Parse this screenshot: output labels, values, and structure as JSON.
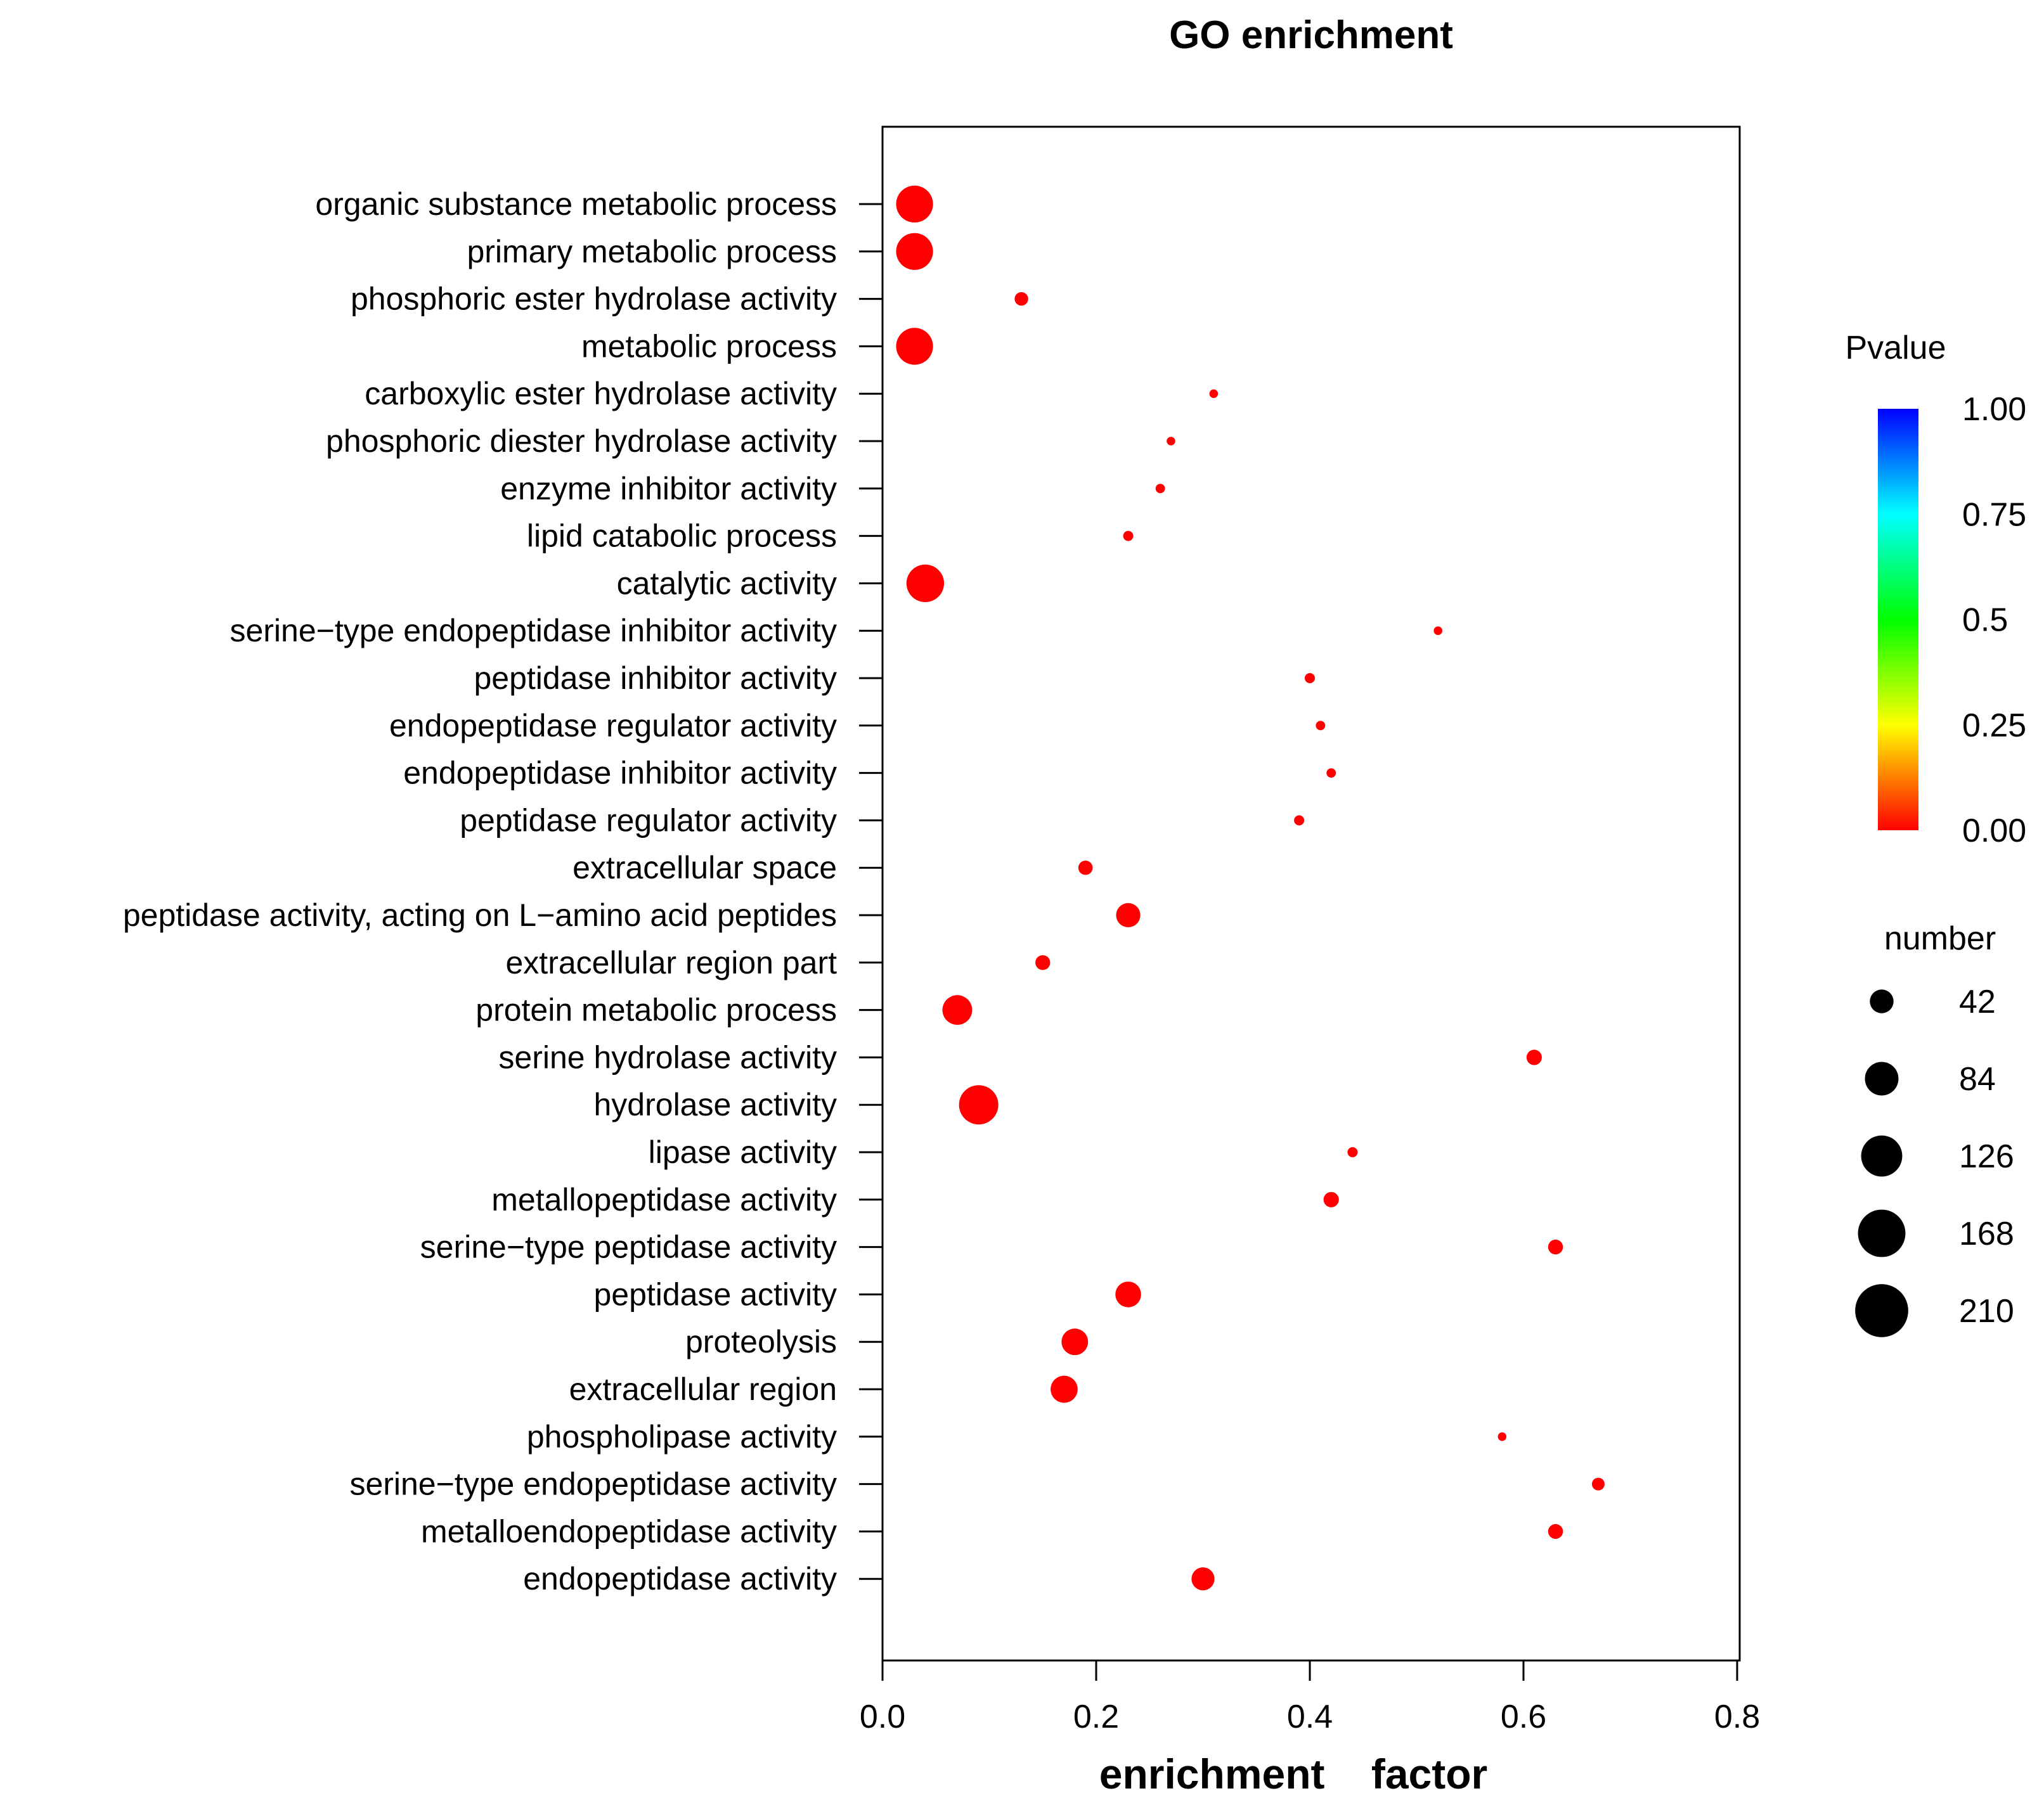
{
  "chart_data": {
    "type": "scatter",
    "title": "GO enrichment",
    "xlabel": "enrichment    factor",
    "ylabel": "",
    "xlim": [
      0,
      0.8
    ],
    "xticks": [
      "0.0",
      "0.2",
      "0.4",
      "0.6",
      "0.8"
    ],
    "categories": [
      "organic substance metabolic process",
      "primary metabolic process",
      "phosphoric ester hydrolase activity",
      "metabolic process",
      "carboxylic ester hydrolase activity",
      "phosphoric diester hydrolase activity",
      "enzyme inhibitor activity",
      "lipid catabolic process",
      "catalytic activity",
      "serine−type endopeptidase inhibitor activity",
      "peptidase inhibitor activity",
      "endopeptidase regulator activity",
      "endopeptidase inhibitor activity",
      "peptidase regulator activity",
      "extracellular space",
      "peptidase activity, acting on L−amino acid peptides",
      "extracellular region part",
      "protein metabolic process",
      "serine hydrolase activity",
      "hydrolase activity",
      "lipase activity",
      "metallopeptidase activity",
      "serine−type peptidase activity",
      "peptidase activity",
      "proteolysis",
      "extracellular region",
      "phospholipase activity",
      "serine−type endopeptidase activity",
      "metalloendopeptidase activity",
      "endopeptidase activity"
    ],
    "points": [
      {
        "x": 0.03,
        "number": 185,
        "pvalue": 0.0
      },
      {
        "x": 0.03,
        "number": 185,
        "pvalue": 0.0
      },
      {
        "x": 0.13,
        "number": 25,
        "pvalue": 0.0
      },
      {
        "x": 0.03,
        "number": 185,
        "pvalue": 0.0
      },
      {
        "x": 0.31,
        "number": 10,
        "pvalue": 0.0
      },
      {
        "x": 0.27,
        "number": 10,
        "pvalue": 0.0
      },
      {
        "x": 0.26,
        "number": 12,
        "pvalue": 0.0
      },
      {
        "x": 0.23,
        "number": 14,
        "pvalue": 0.0
      },
      {
        "x": 0.04,
        "number": 192,
        "pvalue": 0.0
      },
      {
        "x": 0.52,
        "number": 10,
        "pvalue": 0.0
      },
      {
        "x": 0.4,
        "number": 14,
        "pvalue": 0.0
      },
      {
        "x": 0.41,
        "number": 12,
        "pvalue": 0.0
      },
      {
        "x": 0.42,
        "number": 12,
        "pvalue": 0.0
      },
      {
        "x": 0.39,
        "number": 14,
        "pvalue": 0.0
      },
      {
        "x": 0.19,
        "number": 28,
        "pvalue": 0.0
      },
      {
        "x": 0.23,
        "number": 80,
        "pvalue": 0.0
      },
      {
        "x": 0.15,
        "number": 30,
        "pvalue": 0.0
      },
      {
        "x": 0.07,
        "number": 120,
        "pvalue": 0.0
      },
      {
        "x": 0.61,
        "number": 32,
        "pvalue": 0.0
      },
      {
        "x": 0.09,
        "number": 210,
        "pvalue": 0.0
      },
      {
        "x": 0.44,
        "number": 14,
        "pvalue": 0.0
      },
      {
        "x": 0.42,
        "number": 32,
        "pvalue": 0.0
      },
      {
        "x": 0.63,
        "number": 30,
        "pvalue": 0.0
      },
      {
        "x": 0.23,
        "number": 90,
        "pvalue": 0.0
      },
      {
        "x": 0.18,
        "number": 96,
        "pvalue": 0.0
      },
      {
        "x": 0.17,
        "number": 100,
        "pvalue": 0.0
      },
      {
        "x": 0.58,
        "number": 10,
        "pvalue": 0.0
      },
      {
        "x": 0.67,
        "number": 22,
        "pvalue": 0.0
      },
      {
        "x": 0.63,
        "number": 30,
        "pvalue": 0.0
      },
      {
        "x": 0.3,
        "number": 72,
        "pvalue": 0.0
      }
    ],
    "color_legend": {
      "title": "Pvalue",
      "ticks": [
        "1.00",
        "0.75",
        "0.5",
        "0.25",
        "0.00"
      ],
      "range": [
        0,
        1
      ],
      "gradient": [
        "#ff0000",
        "#ffff00",
        "#00ff00",
        "#00ffff",
        "#0000ff"
      ]
    },
    "size_legend": {
      "title": "number",
      "values": [
        42,
        84,
        126,
        168,
        210
      ],
      "labels": [
        "42",
        "84",
        "126",
        "168",
        "210"
      ]
    },
    "point_color": "#ff0000"
  }
}
